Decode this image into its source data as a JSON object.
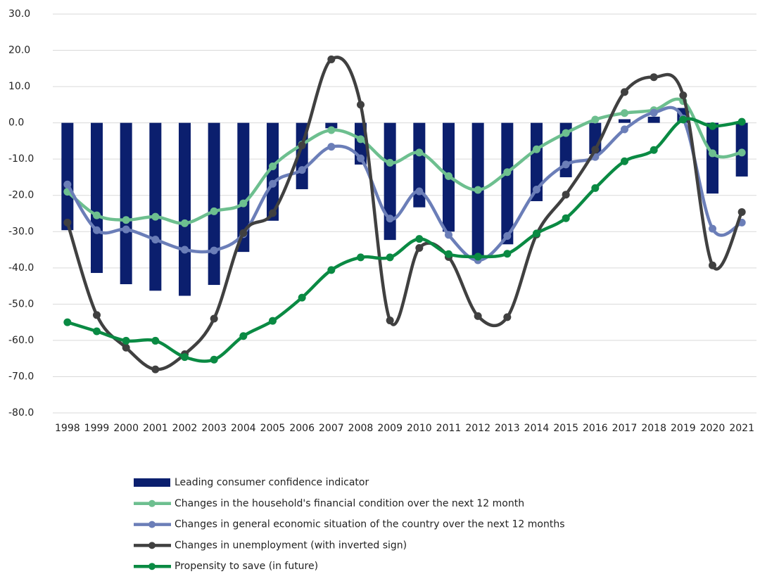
{
  "chart_data": {
    "type": "bar-line",
    "categories": [
      "1998",
      "1999",
      "2000",
      "2001",
      "2002",
      "2003",
      "2004",
      "2005",
      "2006",
      "2007",
      "2008",
      "2009",
      "2010",
      "2011",
      "2012",
      "2013",
      "2014",
      "2015",
      "2016",
      "2017",
      "2018",
      "2019",
      "2020",
      "2021"
    ],
    "series": [
      {
        "name": "Leading consumer confidence indicator",
        "type": "bar",
        "color": "#0b1f6e",
        "values": [
          -29.6,
          -41.4,
          -44.5,
          -46.3,
          -47.7,
          -44.7,
          -35.6,
          -27.0,
          -18.3,
          -1.5,
          -11.5,
          -32.3,
          -23.3,
          -30.0,
          -37.7,
          -33.5,
          -21.6,
          -15.0,
          -8.6,
          1.0,
          1.7,
          4.1,
          -19.5,
          -14.8
        ]
      },
      {
        "name": "Changes in the household's financial condition over the next 12 month",
        "type": "line",
        "color": "#6dbf8f",
        "values": [
          -19.0,
          -25.5,
          -26.8,
          -25.9,
          -27.7,
          -24.4,
          -22.2,
          -12.0,
          -6.0,
          -2.0,
          -4.5,
          -11.0,
          -8.2,
          -14.7,
          -18.5,
          -13.6,
          -7.3,
          -2.8,
          0.9,
          2.7,
          3.5,
          6.0,
          -8.4,
          -8.2
        ]
      },
      {
        "name": "Changes in general economic situation of the country over the next 12 months",
        "type": "line",
        "color": "#6b7eb8",
        "values": [
          -17.0,
          -29.6,
          -29.4,
          -32.2,
          -35.0,
          -35.2,
          -30.7,
          -16.8,
          -13.0,
          -6.6,
          -9.8,
          -26.4,
          -18.9,
          -30.9,
          -37.9,
          -31.2,
          -18.4,
          -11.5,
          -9.4,
          -1.8,
          2.8,
          1.2,
          -29.2,
          -27.5
        ]
      },
      {
        "name": "Changes in unemployment (with inverted sign)",
        "type": "line",
        "color": "#404040",
        "values": [
          -27.5,
          -53.0,
          -62.0,
          -68.0,
          -63.8,
          -54.0,
          -30.4,
          -24.9,
          -6.2,
          17.5,
          5.0,
          -54.5,
          -34.5,
          -37.0,
          -53.3,
          -53.6,
          -30.8,
          -19.8,
          -7.4,
          8.5,
          12.6,
          7.6,
          -39.3,
          -24.6
        ]
      },
      {
        "name": "Propensity to save (in future)",
        "type": "line",
        "color": "#0a8a43",
        "values": [
          -55.0,
          -57.5,
          -60.1,
          -60.1,
          -64.6,
          -65.3,
          -58.8,
          -54.6,
          -48.2,
          -40.6,
          -37.1,
          -37.1,
          -32.0,
          -36.2,
          -36.9,
          -36.1,
          -30.5,
          -26.3,
          -18.0,
          -10.6,
          -7.5,
          0.9,
          -0.9,
          0.3
        ]
      }
    ],
    "ylim": [
      -80,
      30
    ],
    "yticks": [
      {
        "value": -80,
        "label": "-80.0"
      },
      {
        "value": -70,
        "label": "-70.0"
      },
      {
        "value": -60,
        "label": "-60.0"
      },
      {
        "value": -50,
        "label": "-50.0"
      },
      {
        "value": -40,
        "label": "-40.0"
      },
      {
        "value": -30,
        "label": "-30.0"
      },
      {
        "value": -20,
        "label": "-20.0"
      },
      {
        "value": -10,
        "label": "-10.0"
      },
      {
        "value": 0,
        "label": "0.0"
      },
      {
        "value": 10,
        "label": "10.0"
      },
      {
        "value": 20,
        "label": "20.0"
      },
      {
        "value": 30,
        "label": "30.0"
      }
    ],
    "grid": true,
    "legend": "bottom"
  }
}
